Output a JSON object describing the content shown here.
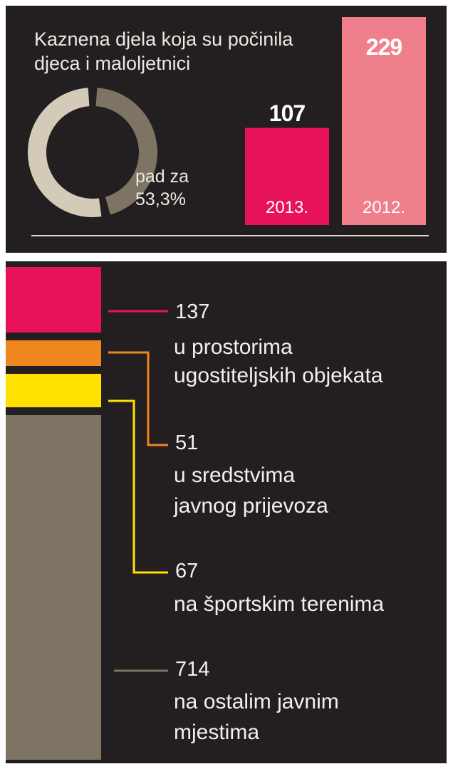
{
  "chart_data": [
    {
      "type": "bar",
      "title": "Kaznena djela koja su počinila djeca i maloljetnici",
      "categories": [
        "2013.",
        "2012."
      ],
      "values": [
        107,
        229
      ],
      "value_labels": [
        "107",
        "229"
      ],
      "colors": [
        "#e8125c",
        "#ef7f8b"
      ],
      "ylim": [
        0,
        229
      ],
      "legend": "none",
      "grid": false,
      "donut": {
        "value": 53.3,
        "label_line1": "pad za",
        "label_line2": "53,3%",
        "colors": {
          "decrease": "#d3cbb8",
          "remaining": "#7d7463"
        }
      }
    },
    {
      "type": "bar",
      "categories": [
        "u prostorima ugostiteljskih objekata",
        "u sredstvima javnog prijevoza",
        "na športskim terenima",
        "na ostalim javnim mjestima"
      ],
      "values": [
        137,
        51,
        67,
        714
      ],
      "colors": [
        "#e8125c",
        "#f0861e",
        "#ffe100",
        "#7d7463"
      ],
      "legend": "right",
      "grid": false,
      "items": [
        {
          "value": "137",
          "line1": "u prostorima",
          "line2": "ugostiteljskih objekata",
          "color": "#e8125c"
        },
        {
          "value": "51",
          "line1": "u sredstvima",
          "line2": "javnog prijevoza",
          "color": "#f0861e"
        },
        {
          "value": "67",
          "line1": "na športskim terenima",
          "line2": "",
          "color": "#ffe100"
        },
        {
          "value": "714",
          "line1": "na ostalim javnim",
          "line2": "mjestima",
          "color": "#7d7463"
        }
      ]
    }
  ]
}
